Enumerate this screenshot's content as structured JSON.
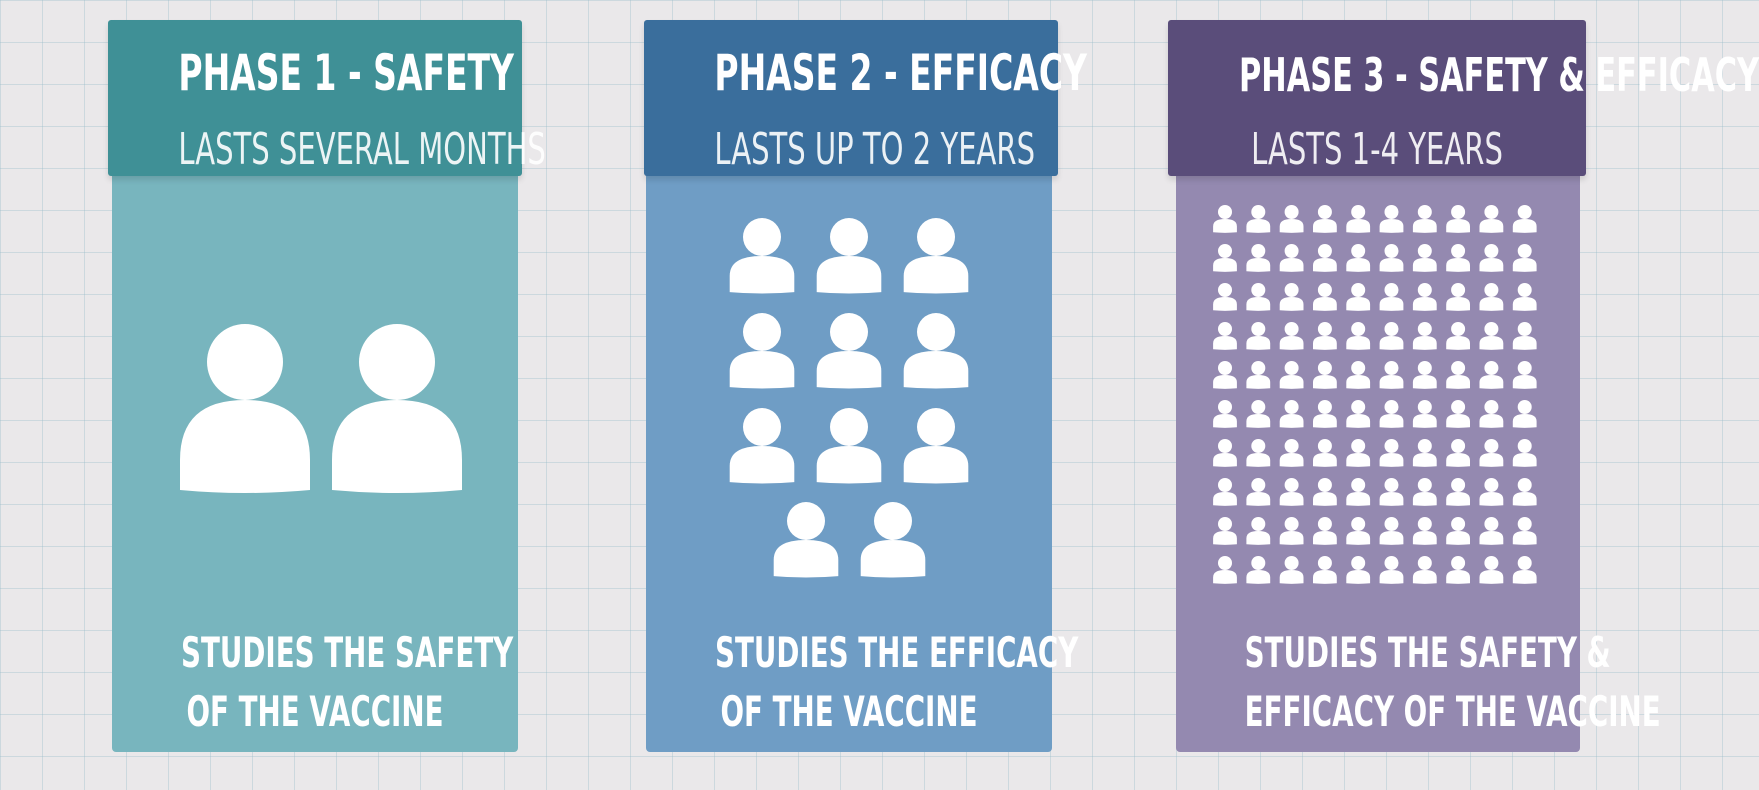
{
  "phases": [
    {
      "title": "PHASE 1 - SAFETY",
      "duration": "LASTS SEVERAL MONTHS",
      "caption_line1": "STUDIES THE SAFETY",
      "caption_line2": "OF THE VACCINE",
      "participant_icon_count": 2,
      "header_color": "#3f9096",
      "body_color": "#78b5be"
    },
    {
      "title": "PHASE 2 - EFFICACY",
      "duration": "LASTS UP TO 2 YEARS",
      "caption_line1": "STUDIES THE EFFICACY",
      "caption_line2": "OF THE VACCINE",
      "participant_icon_count": 11,
      "header_color": "#3a6e9c",
      "body_color": "#6f9dc5"
    },
    {
      "title": "PHASE 3 - SAFETY & EFFICACY",
      "duration": "LASTS 1-4 YEARS",
      "caption_line1": "STUDIES THE SAFETY &",
      "caption_line2": "EFFICACY OF THE VACCINE",
      "participant_icon_count": 100,
      "header_color": "#5a4d7a",
      "body_color": "#9489b0"
    }
  ]
}
